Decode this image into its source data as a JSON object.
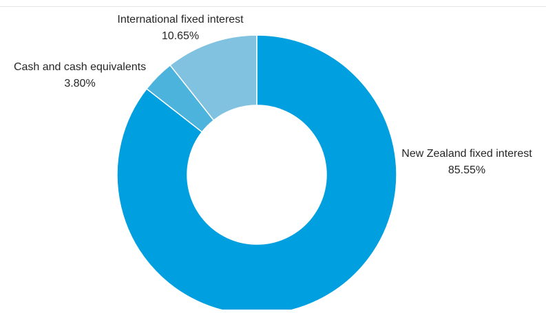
{
  "chart_data": {
    "type": "pie",
    "donut": true,
    "categories": [
      "New Zealand fixed interest",
      "Cash and cash equivalents",
      "International fixed interest"
    ],
    "values": [
      85.55,
      3.8,
      10.65
    ],
    "value_labels": [
      "85.55%",
      "3.80%",
      "10.65%"
    ],
    "colors": [
      "#009fdf",
      "#4cb3dd",
      "#80c2df"
    ],
    "start_angle_deg": 0,
    "direction": "clockwise",
    "legend": "none",
    "data_labels": "outside"
  }
}
